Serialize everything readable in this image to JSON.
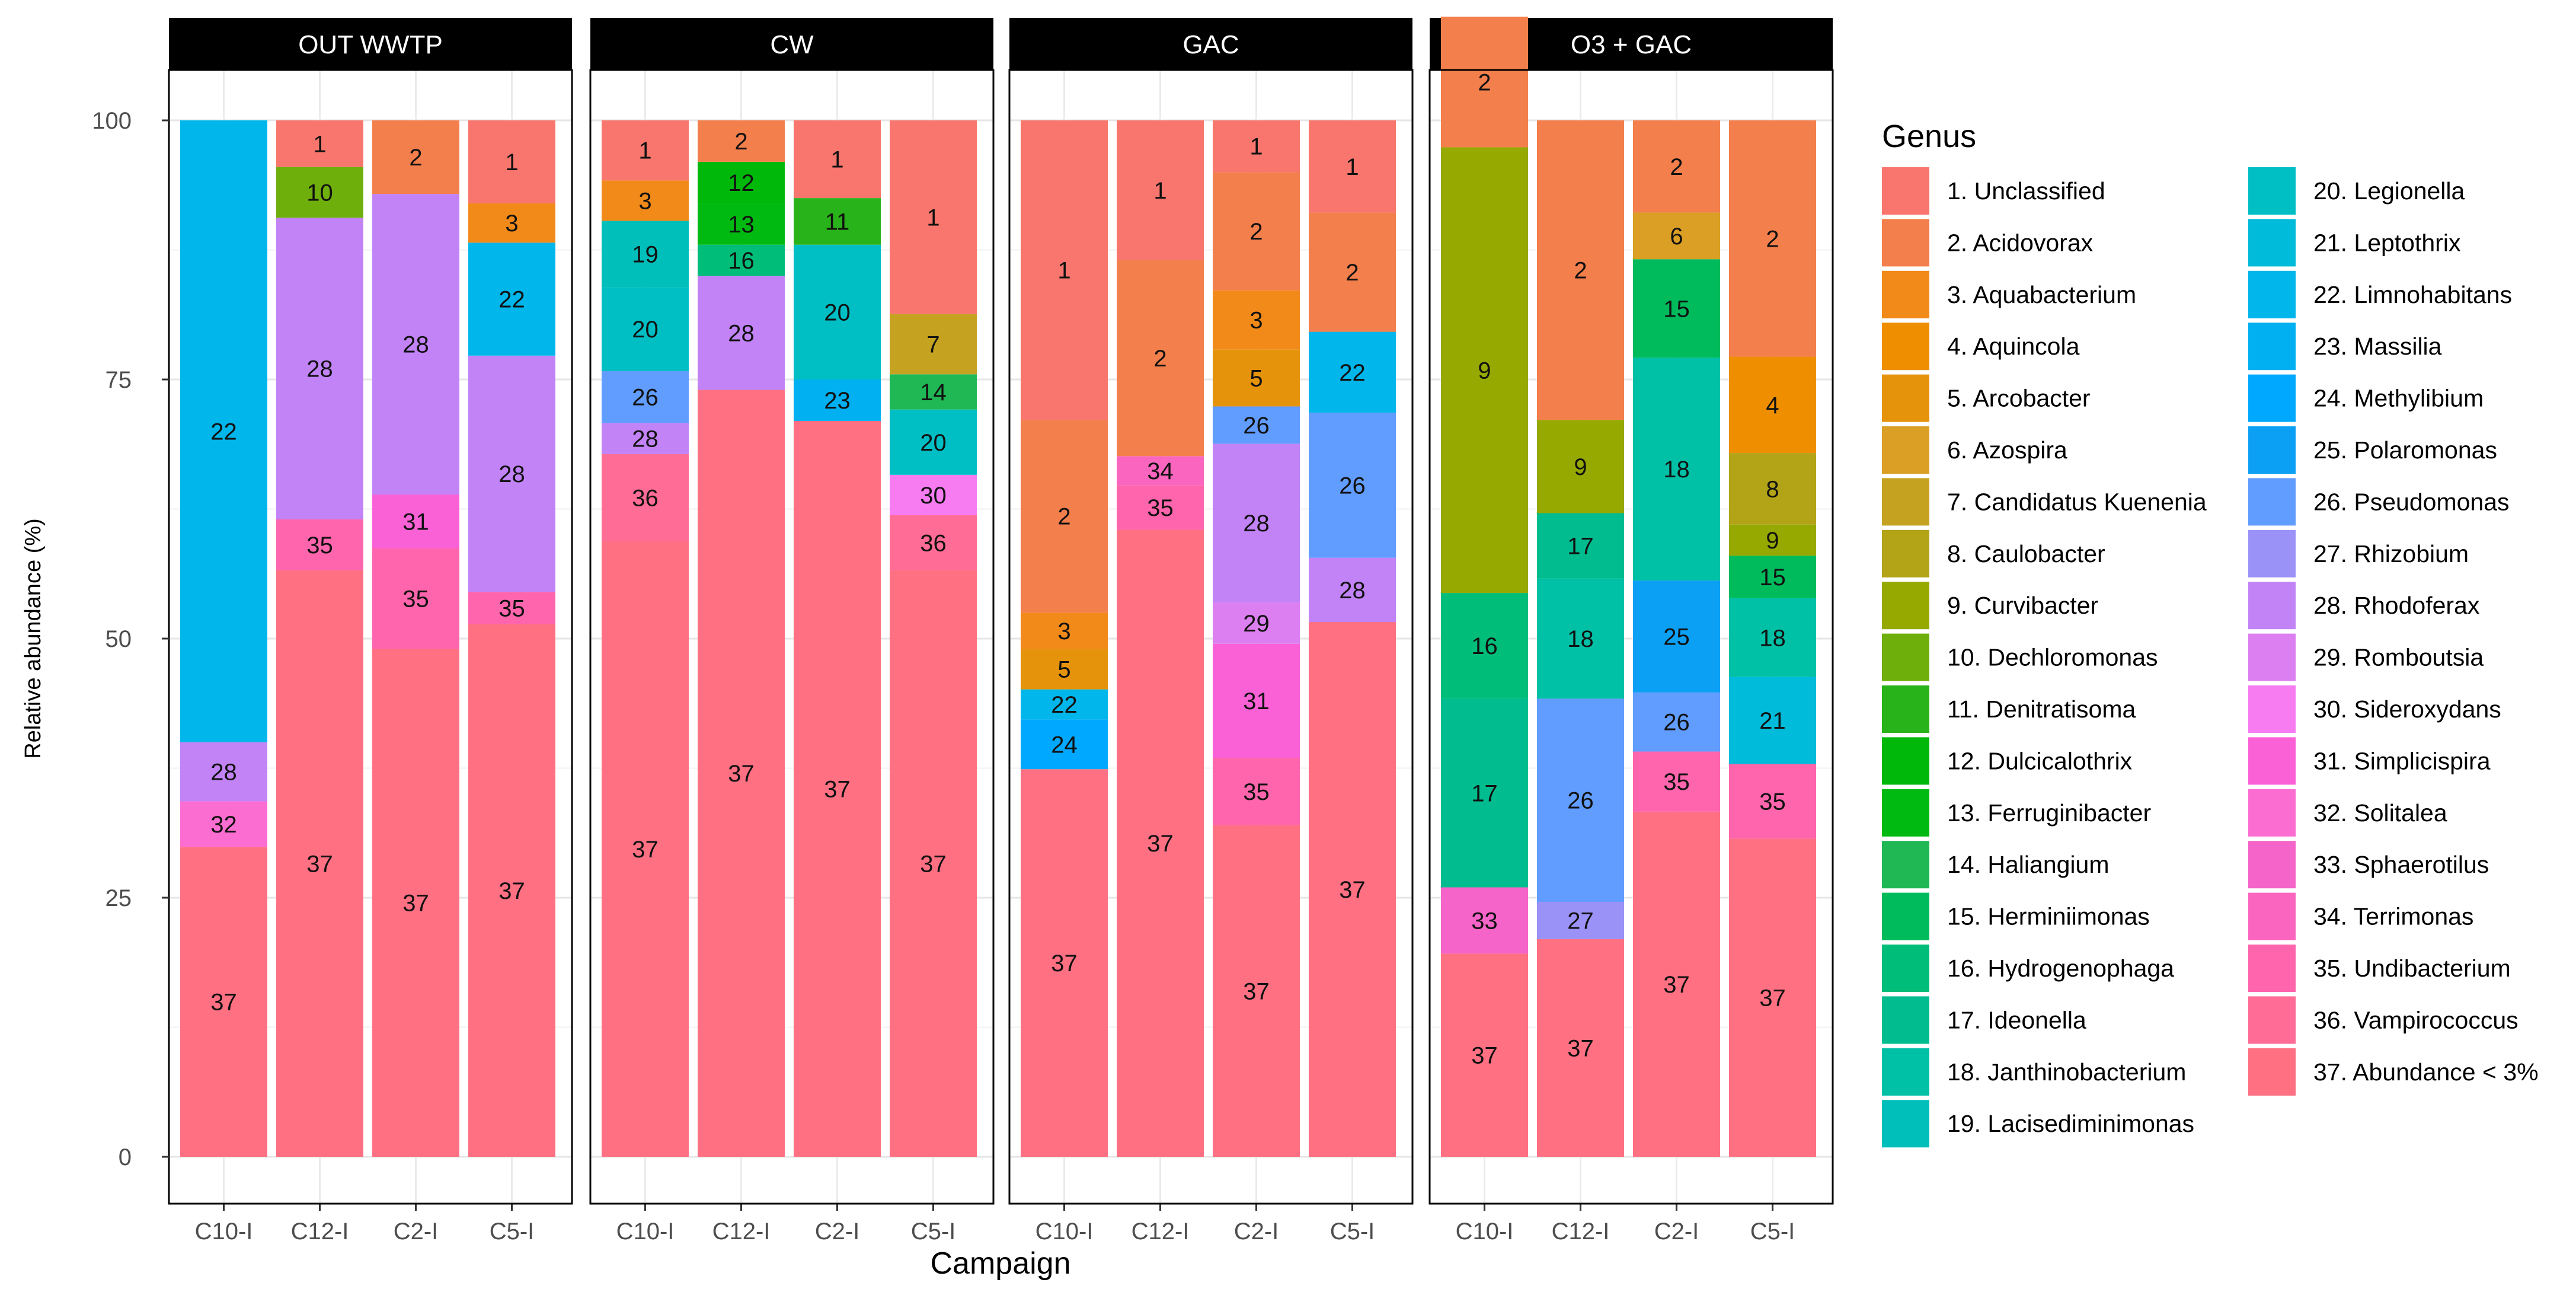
{
  "chart_data": {
    "type": "bar",
    "stacked": true,
    "xlabel": "Campaign",
    "ylabel": "Relative abundance (%)",
    "ylim": [
      0,
      100
    ],
    "yticks": [
      0,
      25,
      50,
      75,
      100
    ],
    "legend_title": "Genus",
    "legend_position": "right",
    "categories": [
      "C10-I",
      "C12-I",
      "C2-I",
      "C5-I"
    ],
    "genus": [
      {
        "id": 1,
        "label": "1. Unclassified",
        "color": "#F8766D"
      },
      {
        "id": 2,
        "label": "2. Acidovorax",
        "color": "#F37F4C"
      },
      {
        "id": 3,
        "label": "3. Aquabacterium",
        "color": "#F28A1A"
      },
      {
        "id": 4,
        "label": "4. Aquincola",
        "color": "#EF8F00"
      },
      {
        "id": 5,
        "label": "5. Arcobacter",
        "color": "#E6930C"
      },
      {
        "id": 6,
        "label": "6. Azospira",
        "color": "#DA9F24"
      },
      {
        "id": 7,
        "label": "7. Candidatus Kuenenia",
        "color": "#C5A321"
      },
      {
        "id": 8,
        "label": "8. Caulobacter",
        "color": "#B3A317"
      },
      {
        "id": 9,
        "label": "9. Curvibacter",
        "color": "#95A900"
      },
      {
        "id": 10,
        "label": "10. Dechloromonas",
        "color": "#6FAF0C"
      },
      {
        "id": 11,
        "label": "11. Denitratisoma",
        "color": "#29B31A"
      },
      {
        "id": 12,
        "label": "12. Dulcicalothrix",
        "color": "#00B80A"
      },
      {
        "id": 13,
        "label": "13. Ferruginibacter",
        "color": "#00BA11"
      },
      {
        "id": 14,
        "label": "14. Haliangium",
        "color": "#1FB855"
      },
      {
        "id": 15,
        "label": "15. Herminiimonas",
        "color": "#00BB5C"
      },
      {
        "id": 16,
        "label": "16. Hydrogenophaga",
        "color": "#00BD7A"
      },
      {
        "id": 17,
        "label": "17. Ideonella",
        "color": "#00BC8E"
      },
      {
        "id": 18,
        "label": "18. Janthinobacterium",
        "color": "#00C0A6"
      },
      {
        "id": 19,
        "label": "19. Lacisediminimonas",
        "color": "#00BFBA"
      },
      {
        "id": 20,
        "label": "20. Legionella",
        "color": "#00BFC4"
      },
      {
        "id": 21,
        "label": "21. Leptothrix",
        "color": "#00BBD9"
      },
      {
        "id": 22,
        "label": "22. Limnohabitans",
        "color": "#00B6EA"
      },
      {
        "id": 23,
        "label": "23. Massilia",
        "color": "#00B0F0"
      },
      {
        "id": 24,
        "label": "24. Methylibium",
        "color": "#00A9FF"
      },
      {
        "id": 25,
        "label": "25. Polaromonas",
        "color": "#0CA0F5"
      },
      {
        "id": 26,
        "label": "26. Pseudomonas",
        "color": "#619CFF"
      },
      {
        "id": 27,
        "label": "27. Rhizobium",
        "color": "#9B92F7"
      },
      {
        "id": 28,
        "label": "28. Rhodoferax",
        "color": "#C283F7"
      },
      {
        "id": 29,
        "label": "29. Romboutsia",
        "color": "#DC7FF1"
      },
      {
        "id": 30,
        "label": "30. Sideroxydans",
        "color": "#F77CF2"
      },
      {
        "id": 31,
        "label": "31. Simplicispira",
        "color": "#FB61D7"
      },
      {
        "id": 32,
        "label": "32. Solitalea",
        "color": "#FC6DD2"
      },
      {
        "id": 33,
        "label": "33. Sphaerotilus",
        "color": "#F564C8"
      },
      {
        "id": 34,
        "label": "34. Terrimonas",
        "color": "#FA66BF"
      },
      {
        "id": 35,
        "label": "35. Undibacterium",
        "color": "#FF65AC"
      },
      {
        "id": 36,
        "label": "36. Vampirococcus",
        "color": "#FF6C95"
      },
      {
        "id": 37,
        "label": "37. Abundance < 3%",
        "color": "#FF7083"
      }
    ],
    "panels": [
      {
        "name": "OUT WWTP",
        "bars": [
          {
            "category": "C10-I",
            "segments": [
              [
                37,
                29.9
              ],
              [
                32,
                4.4
              ],
              [
                28,
                5.7
              ],
              [
                22,
                60.0
              ]
            ]
          },
          {
            "category": "C12-I",
            "segments": [
              [
                37,
                56.6
              ],
              [
                35,
                4.9
              ],
              [
                28,
                29.1
              ],
              [
                10,
                4.9
              ],
              [
                1,
                4.5
              ]
            ]
          },
          {
            "category": "C2-I",
            "segments": [
              [
                37,
                49.0
              ],
              [
                35,
                9.7
              ],
              [
                31,
                5.2
              ],
              [
                28,
                29.0
              ],
              [
                2,
                7.1
              ]
            ]
          },
          {
            "category": "C5-I",
            "segments": [
              [
                37,
                51.4
              ],
              [
                35,
                3.1
              ],
              [
                28,
                22.8
              ],
              [
                22,
                10.9
              ],
              [
                3,
                3.8
              ],
              [
                1,
                8.0
              ]
            ]
          }
        ]
      },
      {
        "name": "CW",
        "bars": [
          {
            "category": "C10-I",
            "segments": [
              [
                37,
                59.4
              ],
              [
                36,
                8.4
              ],
              [
                28,
                3.0
              ],
              [
                26,
                5.0
              ],
              [
                20,
                8.1
              ],
              [
                19,
                6.4
              ],
              [
                3,
                3.9
              ],
              [
                1,
                5.8
              ]
            ]
          },
          {
            "category": "C12-I",
            "segments": [
              [
                37,
                74.0
              ],
              [
                28,
                11.0
              ],
              [
                16,
                3.0
              ],
              [
                13,
                4.0
              ],
              [
                12,
                4.0
              ],
              [
                2,
                4.0
              ]
            ]
          },
          {
            "category": "C2-I",
            "segments": [
              [
                37,
                71.0
              ],
              [
                23,
                4.0
              ],
              [
                20,
                13.0
              ],
              [
                11,
                4.5
              ],
              [
                1,
                7.5
              ]
            ]
          },
          {
            "category": "C5-I",
            "segments": [
              [
                37,
                56.6
              ],
              [
                36,
                5.3
              ],
              [
                30,
                3.9
              ],
              [
                20,
                6.3
              ],
              [
                14,
                3.4
              ],
              [
                7,
                5.8
              ],
              [
                1,
                18.7
              ]
            ]
          }
        ]
      },
      {
        "name": "GAC",
        "bars": [
          {
            "category": "C10-I",
            "segments": [
              [
                37,
                37.4
              ],
              [
                24,
                4.8
              ],
              [
                22,
                2.9
              ],
              [
                5,
                3.9
              ],
              [
                3,
                3.5
              ],
              [
                2,
                18.6
              ],
              [
                1,
                28.9
              ]
            ]
          },
          {
            "category": "C12-I",
            "segments": [
              [
                37,
                60.5
              ],
              [
                35,
                4.3
              ],
              [
                34,
                2.8
              ],
              [
                2,
                18.9
              ],
              [
                1,
                13.5
              ]
            ]
          },
          {
            "category": "C2-I",
            "segments": [
              [
                37,
                32.0
              ],
              [
                35,
                6.5
              ],
              [
                31,
                11.0
              ],
              [
                29,
                4.0
              ],
              [
                28,
                15.3
              ],
              [
                26,
                3.6
              ],
              [
                5,
                5.5
              ],
              [
                3,
                5.7
              ],
              [
                2,
                11.4
              ],
              [
                1,
                5.0
              ]
            ]
          },
          {
            "category": "C5-I",
            "segments": [
              [
                37,
                51.6
              ],
              [
                28,
                6.2
              ],
              [
                26,
                14.0
              ],
              [
                22,
                7.8
              ],
              [
                2,
                11.5
              ],
              [
                1,
                8.9
              ]
            ]
          }
        ]
      },
      {
        "name": "O3 + GAC",
        "bars": [
          {
            "category": "C10-I",
            "segments": [
              [
                37,
                19.6
              ],
              [
                33,
                6.4
              ],
              [
                17,
                18.2
              ],
              [
                16,
                10.2
              ],
              [
                9,
                43.0
              ],
              [
                2,
                12.6
              ]
            ]
          },
          {
            "category": "C12-I",
            "segments": [
              [
                37,
                21.0
              ],
              [
                27,
                3.6
              ],
              [
                26,
                19.6
              ],
              [
                18,
                11.6
              ],
              [
                17,
                6.3
              ],
              [
                9,
                9.0
              ],
              [
                2,
                28.9
              ]
            ]
          },
          {
            "category": "C2-I",
            "segments": [
              [
                37,
                33.3
              ],
              [
                35,
                5.8
              ],
              [
                26,
                5.7
              ],
              [
                25,
                10.8
              ],
              [
                18,
                21.5
              ],
              [
                15,
                9.5
              ],
              [
                6,
                4.5
              ],
              [
                2,
                8.9
              ]
            ]
          },
          {
            "category": "C5-I",
            "segments": [
              [
                37,
                30.7
              ],
              [
                35,
                7.2
              ],
              [
                21,
                8.4
              ],
              [
                18,
                7.6
              ],
              [
                15,
                4.1
              ],
              [
                9,
                3.0
              ],
              [
                8,
                6.9
              ],
              [
                4,
                9.3
              ],
              [
                2,
                22.8
              ]
            ]
          }
        ]
      }
    ]
  }
}
